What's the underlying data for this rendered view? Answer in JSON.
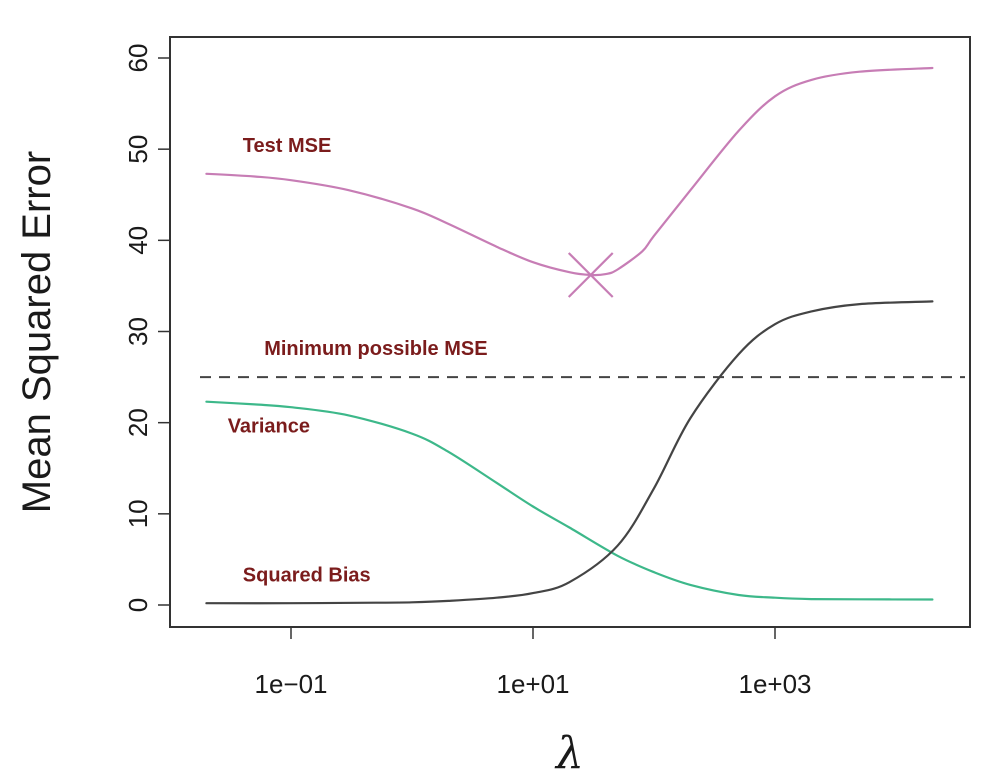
{
  "chart_data": {
    "type": "line",
    "xscale": "log10",
    "xlim": [
      0.01,
      50000
    ],
    "ylim": [
      0,
      60
    ],
    "xlabel": "λ",
    "ylabel": "Mean Squared Error",
    "xticks": [
      0.1,
      10,
      1000
    ],
    "xtick_labels": [
      "1e−01",
      "1e+01",
      "1e+03"
    ],
    "yticks": [
      0,
      10,
      20,
      30,
      40,
      50,
      60
    ],
    "ytick_labels": [
      "0",
      "10",
      "20",
      "30",
      "40",
      "50",
      "60"
    ],
    "grid": false,
    "series": [
      {
        "name": "Test MSE",
        "color": "#c77db5",
        "x": [
          0.02,
          0.05,
          0.1,
          0.3,
          1,
          2,
          5,
          10,
          20,
          30,
          40,
          50,
          80,
          100,
          200,
          500,
          1000,
          2000,
          5000,
          20000
        ],
        "y": [
          47.3,
          47.0,
          46.6,
          45.5,
          43.5,
          41.8,
          39.3,
          37.6,
          36.5,
          36.2,
          36.3,
          36.8,
          38.8,
          40.5,
          45.5,
          52.0,
          55.8,
          57.6,
          58.5,
          58.9
        ]
      },
      {
        "name": "Variance",
        "color": "#3db88a",
        "x": [
          0.02,
          0.05,
          0.1,
          0.3,
          1,
          2,
          5,
          10,
          20,
          50,
          100,
          200,
          500,
          1000,
          2000,
          5000,
          20000
        ],
        "y": [
          22.3,
          22.0,
          21.7,
          20.8,
          18.8,
          16.8,
          13.4,
          10.8,
          8.5,
          5.4,
          3.6,
          2.2,
          1.1,
          0.8,
          0.65,
          0.62,
          0.6
        ]
      },
      {
        "name": "Squared Bias",
        "color": "#444444",
        "x": [
          0.02,
          0.1,
          0.5,
          1,
          2,
          5,
          10,
          20,
          50,
          100,
          200,
          500,
          1000,
          2000,
          5000,
          20000
        ],
        "y": [
          0.2,
          0.2,
          0.25,
          0.3,
          0.45,
          0.8,
          1.3,
          2.5,
          6.5,
          12.8,
          20.5,
          27.5,
          30.8,
          32.2,
          33.0,
          33.3
        ]
      }
    ],
    "reference_lines": [
      {
        "name": "Minimum possible MSE",
        "y": 25,
        "style": "dashed",
        "color": "#444444"
      }
    ],
    "markers": [
      {
        "x": 30,
        "y": 36.2,
        "shape": "cross",
        "color": "#c77db5"
      }
    ],
    "annotations": [
      {
        "text": "Test MSE",
        "x": 0.04,
        "y": 49.7,
        "color": "#7b1c1c"
      },
      {
        "text": "Minimum possible MSE",
        "x": 0.06,
        "y": 27.4,
        "color": "#7b1c1c"
      },
      {
        "text": "Variance",
        "x": 0.03,
        "y": 18.9,
        "color": "#7b1c1c"
      },
      {
        "text": "Squared Bias",
        "x": 0.04,
        "y": 2.6,
        "color": "#7b1c1c"
      }
    ]
  }
}
